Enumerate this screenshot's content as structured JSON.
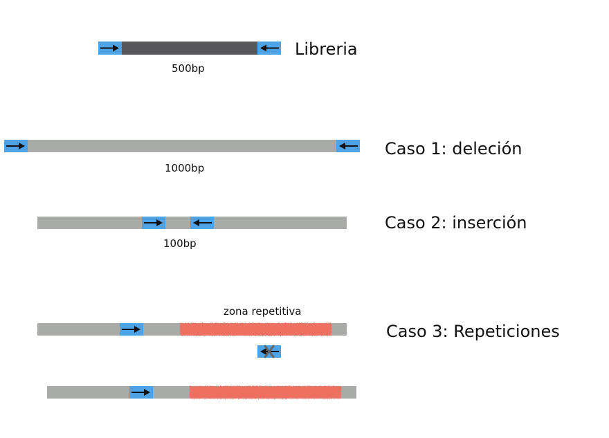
{
  "diagram": {
    "library": {
      "label": "Libreria",
      "insert_size": "500bp"
    },
    "case1": {
      "label": "Caso 1: deleción",
      "observed_size": "1000bp"
    },
    "case2": {
      "label": "Caso 2: inserción",
      "observed_size": "100bp"
    },
    "case3": {
      "label": "Caso 3: Repeticiones",
      "repeat_label": "zona repetitiva"
    },
    "colors": {
      "library_insert": "#58585a",
      "genome": "#a9aba9",
      "primer": "#4da3e6",
      "repeat": "#ee7060",
      "arrow": "#111111",
      "failed_mark": "#666666"
    }
  }
}
